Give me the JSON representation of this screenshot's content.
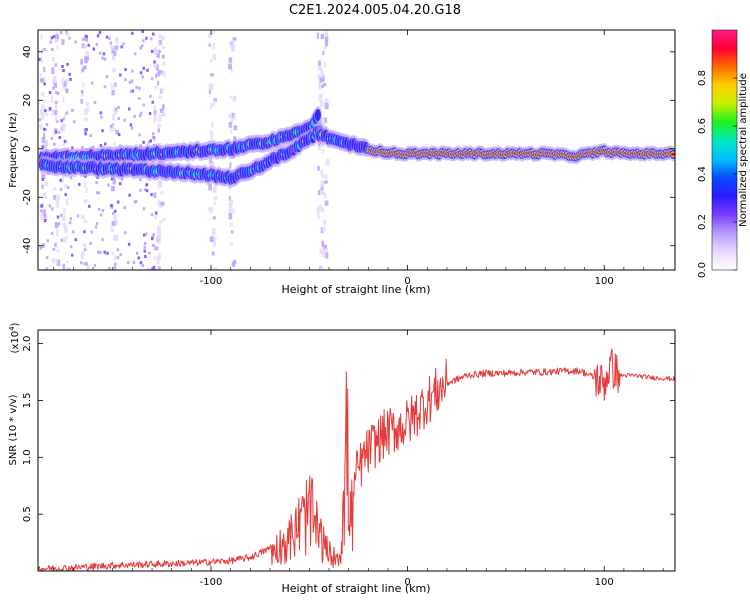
{
  "page": {
    "title": "C2E1.2024.005.04.20.G18"
  },
  "colors": {
    "axis": "#000000",
    "snr_line": "#e53b3b",
    "colormap": [
      "#ffffff",
      "#e9d8ff",
      "#b69cff",
      "#7c3cff",
      "#2a1bff",
      "#0a49ff",
      "#00c0ff",
      "#00e8c0",
      "#1cf01c",
      "#c8f000",
      "#ffd000",
      "#ff6a00",
      "#ff0030",
      "#ff1a8a"
    ]
  },
  "chart_data": [
    {
      "type": "heatmap",
      "title": "C2E1.2024.005.04.20.G18",
      "xlabel": "Height of straight line (km)",
      "ylabel": "Frequency (Hz)",
      "xlim": [
        -188,
        136
      ],
      "ylim": [
        -50,
        49
      ],
      "x_ticks": [
        -100,
        0,
        100
      ],
      "y_ticks": [
        -40,
        -20,
        0,
        20,
        40
      ],
      "colorbar": {
        "label": "Normalized spectral amplitude",
        "range": [
          0.0,
          1.0
        ],
        "ticks": [
          0.0,
          0.2,
          0.4,
          0.6,
          0.8
        ]
      },
      "ridges": [
        {
          "name_hidden": true,
          "points": [
            [
              -186,
              -4
            ],
            [
              -160,
              -3
            ],
            [
              -130,
              -2
            ],
            [
              -110,
              -1
            ],
            [
              -90,
              0
            ],
            [
              -70,
              3
            ],
            [
              -58,
              6
            ],
            [
              -50,
              9
            ],
            [
              -45,
              14
            ]
          ]
        },
        {
          "points": [
            [
              -186,
              -7
            ],
            [
              -160,
              -8
            ],
            [
              -130,
              -9
            ],
            [
              -110,
              -10
            ],
            [
              -90,
              -12
            ],
            [
              -80,
              -9
            ],
            [
              -70,
              -5
            ],
            [
              -60,
              -1
            ],
            [
              -50,
              4
            ],
            [
              -44,
              8
            ]
          ]
        },
        {
          "points": [
            [
              -45,
              6
            ],
            [
              -35,
              3
            ],
            [
              -25,
              1
            ],
            [
              -15,
              -1
            ],
            [
              -5,
              -2
            ],
            [
              10,
              -2
            ],
            [
              40,
              -2
            ],
            [
              70,
              -2
            ],
            [
              85,
              -3
            ],
            [
              100,
              -1
            ],
            [
              110,
              -2
            ],
            [
              136,
              -2
            ]
          ]
        }
      ]
    },
    {
      "type": "line",
      "xlabel": "Height of straight line (km)",
      "ylabel": "SNR (10 * v/v)",
      "y_exponent": "(x10",
      "y_exponent_power": "4",
      "y_exponent_close": ")",
      "xlim": [
        -188,
        136
      ],
      "ylim": [
        0.0,
        2.12
      ],
      "x_ticks": [
        -100,
        0,
        100
      ],
      "y_ticks": [
        0.5,
        1.0,
        1.5,
        2.0
      ],
      "y_tick_labels": [
        "0.5",
        "1.0",
        "1.5",
        "2.0"
      ],
      "envelope": [
        [
          -188,
          0.02
        ],
        [
          -170,
          0.03
        ],
        [
          -150,
          0.05
        ],
        [
          -130,
          0.06
        ],
        [
          -110,
          0.07
        ],
        [
          -90,
          0.09
        ],
        [
          -80,
          0.12
        ],
        [
          -70,
          0.2
        ],
        [
          -60,
          0.35
        ],
        [
          -55,
          0.5
        ],
        [
          -50,
          0.65
        ],
        [
          -46,
          0.45
        ],
        [
          -42,
          0.25
        ],
        [
          -38,
          0.15
        ],
        [
          -34,
          0.2
        ],
        [
          -31,
          1.4
        ],
        [
          -29,
          0.55
        ],
        [
          -26,
          0.85
        ],
        [
          -22,
          1.0
        ],
        [
          -18,
          1.1
        ],
        [
          -12,
          1.2
        ],
        [
          -6,
          1.25
        ],
        [
          0,
          1.3
        ],
        [
          5,
          1.4
        ],
        [
          10,
          1.5
        ],
        [
          15,
          1.58
        ],
        [
          20,
          1.65
        ],
        [
          30,
          1.72
        ],
        [
          40,
          1.74
        ],
        [
          50,
          1.74
        ],
        [
          60,
          1.75
        ],
        [
          70,
          1.75
        ],
        [
          80,
          1.76
        ],
        [
          88,
          1.76
        ],
        [
          95,
          1.7
        ],
        [
          100,
          1.65
        ],
        [
          103,
          1.8
        ],
        [
          108,
          1.72
        ],
        [
          115,
          1.72
        ],
        [
          125,
          1.7
        ],
        [
          136,
          1.69
        ]
      ]
    }
  ]
}
